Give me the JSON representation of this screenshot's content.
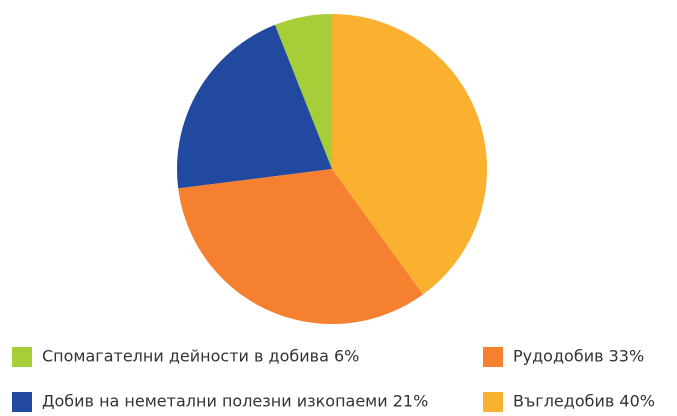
{
  "chart_data": {
    "type": "pie",
    "categories": [
      "Спомагателни дейности в добива 6%",
      "Добив на неметални полезни изкопаеми 21%",
      "Рудодобив 33%",
      "Въгледобив 40%"
    ],
    "values": [
      6,
      21,
      33,
      40
    ],
    "colors": [
      "#a6ce39",
      "#2249a0",
      "#f58030",
      "#fbb130"
    ]
  }
}
